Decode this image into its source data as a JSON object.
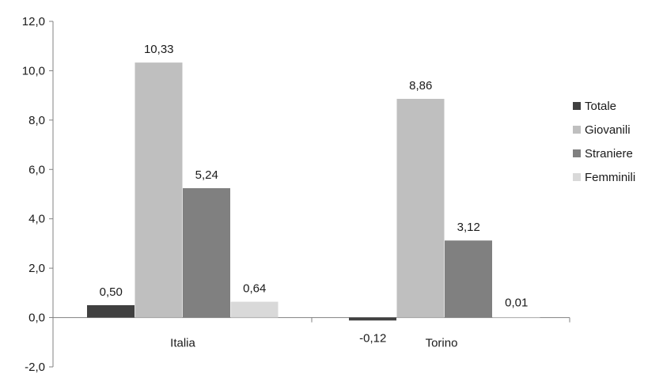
{
  "chart_data": {
    "type": "bar",
    "categories": [
      "Italia",
      "Torino"
    ],
    "series": [
      {
        "name": "Totale",
        "values": [
          0.5,
          -0.12
        ],
        "labels": [
          "0,50",
          "-0,12"
        ],
        "color": "#404040"
      },
      {
        "name": "Giovanili",
        "values": [
          10.33,
          8.86
        ],
        "labels": [
          "10,33",
          "8,86"
        ],
        "color": "#bfbfbf"
      },
      {
        "name": "Straniere",
        "values": [
          5.24,
          3.12
        ],
        "labels": [
          "5,24",
          "3,12"
        ],
        "color": "#808080"
      },
      {
        "name": "Femminili",
        "values": [
          0.64,
          0.01
        ],
        "labels": [
          "0,64",
          "0,01"
        ],
        "color": "#d9d9d9"
      }
    ],
    "ylim": [
      -2.0,
      12.0
    ],
    "yticks": [
      -2.0,
      0.0,
      2.0,
      4.0,
      6.0,
      8.0,
      10.0,
      12.0
    ],
    "ytick_labels": [
      "-2,0",
      "0,0",
      "2,0",
      "4,0",
      "6,0",
      "8,0",
      "10,0",
      "12,0"
    ],
    "grid": false,
    "legend_position": "right",
    "title": "",
    "xlabel": "",
    "ylabel": ""
  }
}
